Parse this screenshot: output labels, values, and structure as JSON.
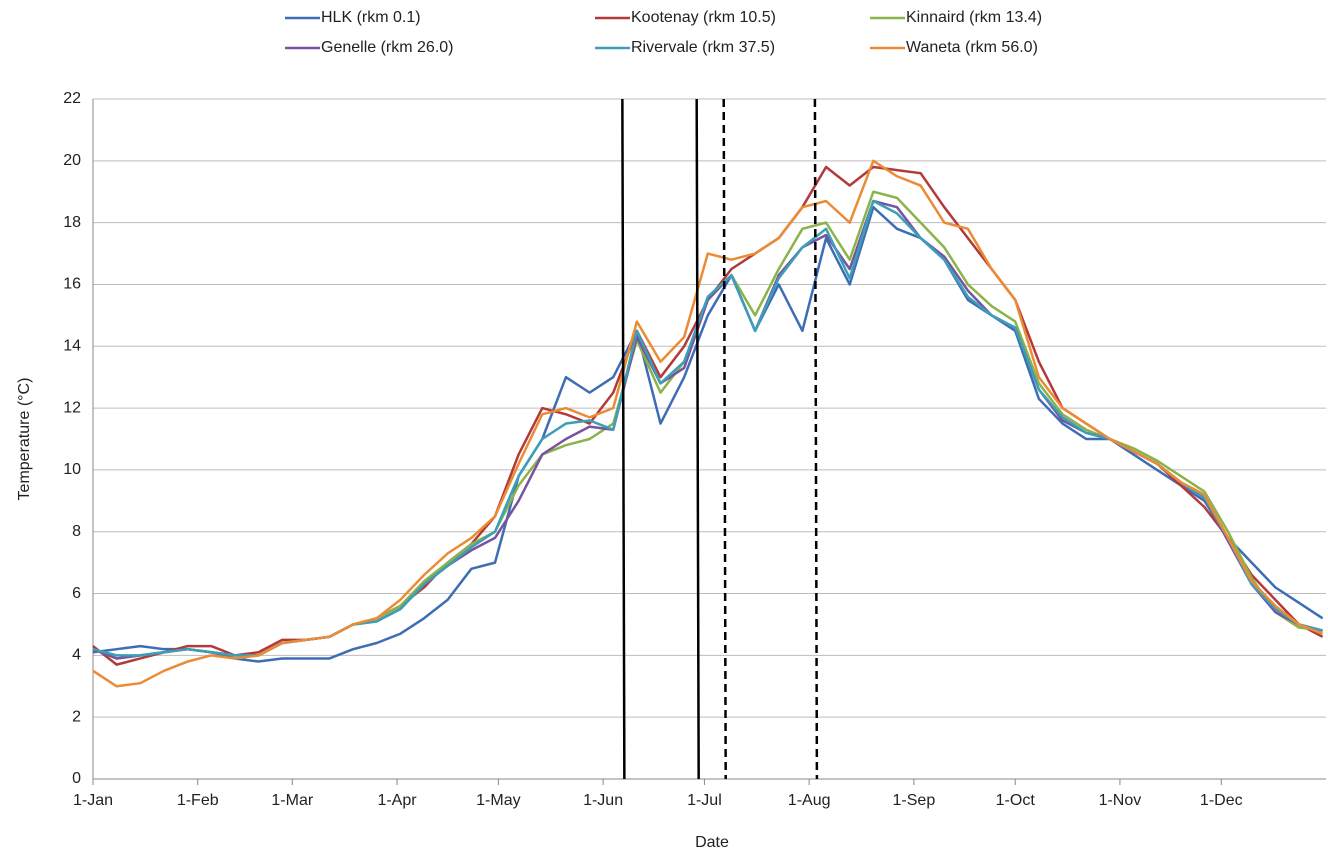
{
  "chart_data": {
    "type": "line",
    "x_label": "Date",
    "y_label": "Temperature (°C)",
    "x": [
      0,
      7,
      14,
      21,
      28,
      35,
      42,
      49,
      56,
      63,
      70,
      77,
      84,
      91,
      98,
      105,
      112,
      119,
      126,
      133,
      140,
      147,
      154,
      161,
      168,
      175,
      182,
      189,
      196,
      203,
      210,
      217,
      224,
      231,
      238,
      245,
      252,
      259,
      266,
      273,
      280,
      287,
      294,
      301,
      308,
      315,
      322,
      329,
      336,
      343,
      350,
      357,
      364
    ],
    "xlim": [
      0,
      365
    ],
    "xticks": [
      {
        "value": 0,
        "label": "1-Jan"
      },
      {
        "value": 31,
        "label": "1-Feb"
      },
      {
        "value": 59,
        "label": "1-Mar"
      },
      {
        "value": 90,
        "label": "1-Apr"
      },
      {
        "value": 120,
        "label": "1-May"
      },
      {
        "value": 151,
        "label": "1-Jun"
      },
      {
        "value": 181,
        "label": "1-Jul"
      },
      {
        "value": 212,
        "label": "1-Aug"
      },
      {
        "value": 243,
        "label": "1-Sep"
      },
      {
        "value": 273,
        "label": "1-Oct"
      },
      {
        "value": 304,
        "label": "1-Nov"
      },
      {
        "value": 334,
        "label": "1-Dec"
      }
    ],
    "ylim": [
      0,
      22
    ],
    "yticks": [
      0,
      2,
      4,
      6,
      8,
      10,
      12,
      14,
      16,
      18,
      20,
      22
    ],
    "grid": true,
    "legend": "top",
    "vertical_lines": [
      {
        "x": 157,
        "style": "solid"
      },
      {
        "x": 179,
        "style": "solid"
      },
      {
        "x": 187,
        "style": "dashed"
      },
      {
        "x": 214,
        "style": "dashed"
      }
    ],
    "series": [
      {
        "name": "HLK (rkm 0.1)",
        "color": "#3d6db4",
        "values": [
          4.1,
          4.2,
          4.3,
          4.2,
          4.2,
          4.1,
          3.9,
          3.8,
          3.9,
          3.9,
          3.9,
          4.2,
          4.4,
          4.7,
          5.2,
          5.8,
          6.8,
          7.0,
          9.8,
          11.0,
          13.0,
          12.5,
          13.0,
          14.5,
          11.5,
          13.0,
          15.0,
          16.3,
          14.5,
          16.0,
          14.5,
          17.5,
          16.0,
          18.5,
          17.8,
          17.5,
          16.8,
          15.5,
          15.0,
          14.5,
          12.3,
          11.5,
          11.0,
          11.0,
          10.5,
          10.0,
          9.5,
          9.0,
          7.8,
          7.0,
          6.2,
          5.7,
          5.2
        ]
      },
      {
        "name": "Kootenay (rkm 10.5)",
        "color": "#b23a38",
        "values": [
          4.3,
          3.7,
          3.9,
          4.1,
          4.3,
          4.3,
          4.0,
          4.1,
          4.5,
          4.5,
          4.6,
          5.0,
          5.2,
          5.6,
          6.2,
          7.0,
          7.6,
          8.5,
          10.5,
          12.0,
          11.8,
          11.5,
          12.5,
          14.5,
          13.0,
          14.0,
          15.5,
          16.5,
          17.0,
          17.5,
          18.5,
          19.8,
          19.2,
          19.8,
          19.7,
          19.6,
          18.5,
          17.5,
          16.5,
          15.5,
          13.5,
          12.0,
          11.5,
          11.0,
          10.6,
          10.2,
          9.5,
          8.8,
          7.8,
          6.6,
          5.8,
          5.0,
          4.6
        ]
      },
      {
        "name": "Kinnaird (rkm 13.4)",
        "color": "#8bb34a",
        "values": [
          4.2,
          3.9,
          4.0,
          4.1,
          4.2,
          4.1,
          4.0,
          4.0,
          4.4,
          4.5,
          4.6,
          5.0,
          5.2,
          5.6,
          6.4,
          7.0,
          7.6,
          8.0,
          9.5,
          10.5,
          10.8,
          11.0,
          11.5,
          14.2,
          12.5,
          13.5,
          15.5,
          16.3,
          15.0,
          16.5,
          17.8,
          18.0,
          16.8,
          19.0,
          18.8,
          18.0,
          17.2,
          16.0,
          15.3,
          14.8,
          12.8,
          11.8,
          11.3,
          11.0,
          10.7,
          10.3,
          9.8,
          9.3,
          8.0,
          6.5,
          5.4,
          4.9,
          4.8
        ]
      },
      {
        "name": "Genelle (rkm 26.0)",
        "color": "#7853a0",
        "values": [
          4.2,
          3.9,
          4.0,
          4.1,
          4.2,
          4.1,
          4.0,
          4.0,
          4.4,
          4.5,
          4.6,
          5.0,
          5.1,
          5.5,
          6.3,
          6.9,
          7.4,
          7.8,
          9.0,
          10.5,
          11.0,
          11.4,
          11.3,
          14.3,
          12.8,
          13.3,
          15.5,
          16.3,
          14.5,
          16.3,
          17.2,
          17.6,
          16.5,
          18.7,
          18.5,
          17.5,
          16.9,
          15.8,
          15.0,
          14.6,
          12.6,
          11.6,
          11.2,
          11.0,
          10.6,
          10.2,
          9.6,
          9.1,
          7.7,
          6.3,
          5.4,
          5.0,
          4.8
        ]
      },
      {
        "name": "Rivervale (rkm 37.5)",
        "color": "#3b9fb7",
        "values": [
          4.2,
          4.0,
          4.0,
          4.1,
          4.2,
          4.1,
          4.0,
          4.0,
          4.4,
          4.5,
          4.6,
          5.0,
          5.1,
          5.5,
          6.3,
          6.9,
          7.5,
          8.0,
          9.8,
          11.0,
          11.5,
          11.6,
          11.3,
          14.5,
          12.8,
          13.5,
          15.6,
          16.3,
          14.5,
          16.2,
          17.2,
          17.8,
          16.2,
          18.7,
          18.3,
          17.5,
          16.8,
          15.6,
          15.0,
          14.6,
          12.6,
          11.7,
          11.2,
          11.0,
          10.6,
          10.2,
          9.6,
          9.1,
          7.8,
          6.3,
          5.5,
          5.0,
          4.8
        ]
      },
      {
        "name": "Waneta (rkm 56.0)",
        "color": "#ec8b35",
        "values": [
          3.5,
          3.0,
          3.1,
          3.5,
          3.8,
          4.0,
          3.9,
          4.0,
          4.4,
          4.5,
          4.6,
          5.0,
          5.2,
          5.8,
          6.6,
          7.3,
          7.8,
          8.5,
          10.2,
          11.8,
          12.0,
          11.7,
          12.0,
          14.8,
          13.5,
          14.3,
          17.0,
          16.8,
          17.0,
          17.5,
          18.5,
          18.7,
          18.0,
          20.0,
          19.5,
          19.2,
          18.0,
          17.8,
          16.5,
          15.5,
          13.0,
          12.0,
          11.5,
          11.0,
          10.6,
          10.2,
          9.6,
          9.2,
          7.8,
          6.4,
          5.6,
          5.0,
          4.7
        ]
      }
    ]
  }
}
